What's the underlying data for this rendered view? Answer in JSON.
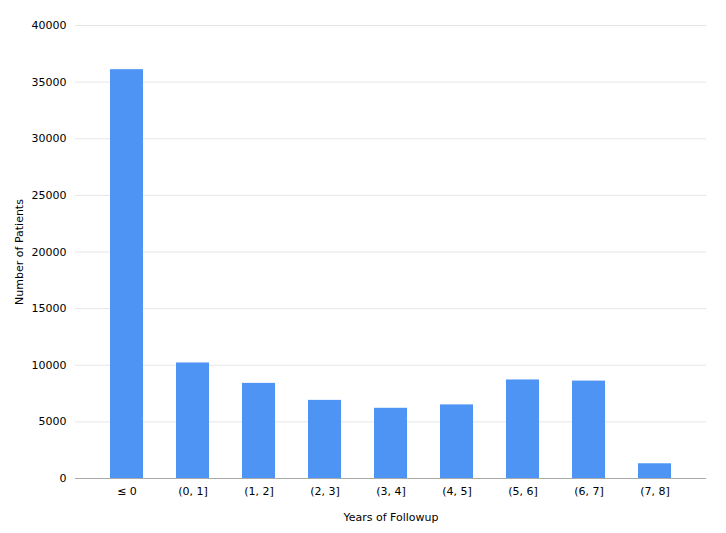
{
  "chart_data": {
    "type": "bar",
    "categories": [
      "≤ 0",
      "(0, 1]",
      "(1, 2]",
      "(2, 3]",
      "(3, 4]",
      "(4, 5]",
      "(5, 6]",
      "(6, 7]",
      "(7, 8]"
    ],
    "values": [
      36100,
      10200,
      8400,
      6900,
      6200,
      6500,
      8700,
      8600,
      1300
    ],
    "color": "#4D94F5",
    "xlabel": "Years of Followup",
    "ylabel": "Number of Patients",
    "ylim": [
      0,
      40000
    ],
    "yticks": [
      0,
      5000,
      10000,
      15000,
      20000,
      25000,
      30000,
      35000,
      40000
    ],
    "grid": true
  }
}
